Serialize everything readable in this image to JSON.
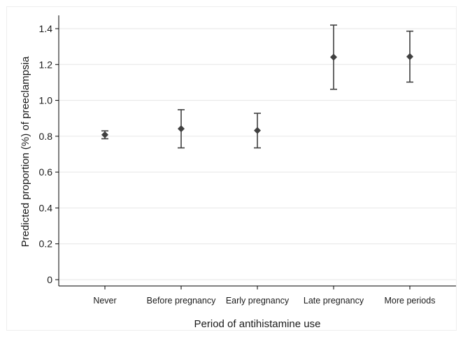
{
  "chart_data": {
    "type": "scatter",
    "title": "",
    "xlabel": "Period of antihistamine use",
    "ylabel": "Predicted proportion (%) of preeclampsia",
    "categories": [
      "Never",
      "Before pregnancy",
      "Early pregnancy",
      "Late pregnancy",
      "More periods"
    ],
    "series": [
      {
        "values": [
          0.808,
          0.842,
          0.832,
          1.241,
          1.244
        ],
        "ci_lower": [
          0.786,
          0.735,
          0.735,
          1.062,
          1.102
        ],
        "ci_upper": [
          0.83,
          0.948,
          0.928,
          1.42,
          1.386
        ]
      }
    ],
    "ylim": [
      0,
      1.4
    ],
    "yticks": [
      "0",
      "0.2",
      "0.4",
      "0.6",
      "0.8",
      "1.0",
      "1.2",
      "1.4"
    ],
    "grid": true,
    "legend": "none",
    "colors": {
      "marker": "#404040",
      "errorbar": "#404040",
      "grid": "#e6e6e6",
      "axis": "#000000",
      "frame": "#eeeeee"
    }
  }
}
